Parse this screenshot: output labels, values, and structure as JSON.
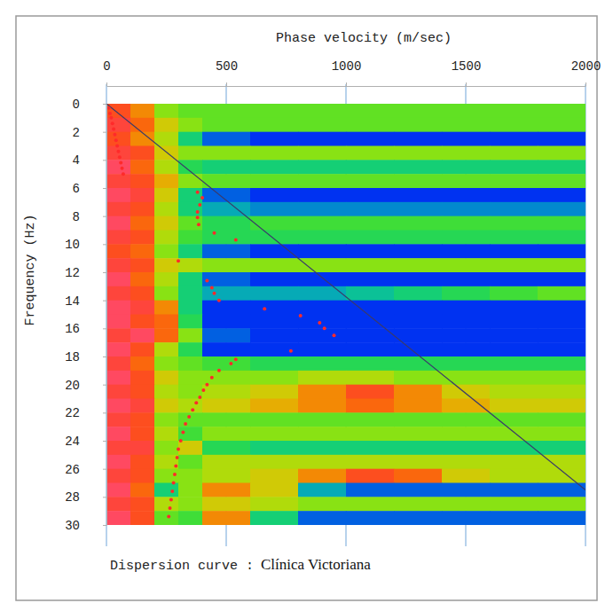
{
  "chart_data": {
    "type": "heatmap",
    "title": "Dispersion curve :",
    "subtitle": "Clínica Victoriana",
    "x_label": "Phase velocity (m/sec)",
    "y_label": "Frequency (Hz)",
    "xlim": [
      0,
      2000
    ],
    "ylim": [
      0,
      30
    ],
    "xticks": [
      0,
      500,
      1000,
      1500,
      2000
    ],
    "yticks": [
      0,
      2,
      4,
      6,
      8,
      10,
      12,
      14,
      16,
      18,
      20,
      22,
      24,
      26,
      28,
      30
    ],
    "grid": true,
    "zlim": [
      0,
      1
    ],
    "x_edges": [
      0,
      100,
      200,
      300,
      400,
      600,
      800,
      1000,
      1200,
      1400,
      1600,
      1800,
      2000
    ],
    "y_edges": [
      0,
      1,
      2,
      3,
      4,
      5,
      6,
      7,
      8,
      9,
      10,
      11,
      12,
      13,
      14,
      15,
      16,
      17,
      18,
      19,
      20,
      21,
      22,
      23,
      24,
      25,
      26,
      27,
      28,
      29,
      30
    ],
    "cells": [
      [
        0.8,
        0.7,
        0.5,
        0.45,
        0.45,
        0.45,
        0.45,
        0.45,
        0.45,
        0.45,
        0.45,
        0.45
      ],
      [
        0.85,
        0.75,
        0.6,
        0.5,
        0.45,
        0.45,
        0.45,
        0.45,
        0.45,
        0.45,
        0.45,
        0.45
      ],
      [
        0.8,
        0.7,
        0.55,
        0.3,
        0.1,
        0.05,
        0.05,
        0.05,
        0.05,
        0.05,
        0.05,
        0.05
      ],
      [
        0.85,
        0.8,
        0.6,
        0.5,
        0.5,
        0.5,
        0.5,
        0.5,
        0.5,
        0.5,
        0.5,
        0.5
      ],
      [
        0.9,
        0.75,
        0.55,
        0.35,
        0.3,
        0.3,
        0.3,
        0.3,
        0.3,
        0.3,
        0.3,
        0.3
      ],
      [
        0.85,
        0.8,
        0.65,
        0.5,
        0.45,
        0.45,
        0.45,
        0.45,
        0.45,
        0.45,
        0.45,
        0.45
      ],
      [
        0.9,
        0.85,
        0.6,
        0.3,
        0.1,
        0.05,
        0.05,
        0.05,
        0.05,
        0.05,
        0.05,
        0.05
      ],
      [
        0.85,
        0.8,
        0.55,
        0.3,
        0.2,
        0.15,
        0.15,
        0.15,
        0.15,
        0.15,
        0.15,
        0.15
      ],
      [
        0.9,
        0.75,
        0.6,
        0.45,
        0.35,
        0.4,
        0.4,
        0.4,
        0.4,
        0.4,
        0.4,
        0.4
      ],
      [
        0.85,
        0.8,
        0.55,
        0.4,
        0.35,
        0.35,
        0.35,
        0.35,
        0.35,
        0.35,
        0.35,
        0.35
      ],
      [
        0.8,
        0.75,
        0.5,
        0.3,
        0.1,
        0.05,
        0.05,
        0.05,
        0.05,
        0.05,
        0.05,
        0.05
      ],
      [
        0.85,
        0.8,
        0.6,
        0.55,
        0.5,
        0.5,
        0.5,
        0.5,
        0.5,
        0.5,
        0.5,
        0.5
      ],
      [
        0.9,
        0.75,
        0.55,
        0.3,
        0.1,
        0.05,
        0.05,
        0.05,
        0.05,
        0.05,
        0.05,
        0.05
      ],
      [
        0.85,
        0.8,
        0.5,
        0.3,
        0.2,
        0.2,
        0.2,
        0.25,
        0.3,
        0.35,
        0.4,
        0.45
      ],
      [
        0.9,
        0.85,
        0.7,
        0.3,
        0.05,
        0.05,
        0.05,
        0.05,
        0.05,
        0.05,
        0.05,
        0.05
      ],
      [
        0.9,
        0.8,
        0.75,
        0.35,
        0.05,
        0.05,
        0.05,
        0.05,
        0.05,
        0.05,
        0.05,
        0.05
      ],
      [
        0.85,
        0.9,
        0.75,
        0.5,
        0.1,
        0.05,
        0.05,
        0.05,
        0.05,
        0.05,
        0.05,
        0.05
      ],
      [
        0.9,
        0.8,
        0.55,
        0.35,
        0.05,
        0.05,
        0.05,
        0.05,
        0.05,
        0.05,
        0.05,
        0.05
      ],
      [
        0.85,
        0.75,
        0.5,
        0.45,
        0.4,
        0.35,
        0.35,
        0.35,
        0.35,
        0.35,
        0.35,
        0.35
      ],
      [
        0.9,
        0.8,
        0.6,
        0.5,
        0.5,
        0.5,
        0.55,
        0.55,
        0.5,
        0.5,
        0.5,
        0.5
      ],
      [
        0.85,
        0.8,
        0.55,
        0.5,
        0.55,
        0.6,
        0.7,
        0.8,
        0.7,
        0.6,
        0.55,
        0.55
      ],
      [
        0.9,
        0.85,
        0.6,
        0.55,
        0.6,
        0.65,
        0.7,
        0.75,
        0.7,
        0.65,
        0.6,
        0.6
      ],
      [
        0.85,
        0.8,
        0.5,
        0.45,
        0.45,
        0.45,
        0.45,
        0.45,
        0.45,
        0.45,
        0.45,
        0.45
      ],
      [
        0.9,
        0.8,
        0.55,
        0.4,
        0.5,
        0.5,
        0.5,
        0.5,
        0.5,
        0.5,
        0.5,
        0.5
      ],
      [
        0.85,
        0.85,
        0.5,
        0.6,
        0.35,
        0.3,
        0.3,
        0.3,
        0.3,
        0.3,
        0.3,
        0.3
      ],
      [
        0.9,
        0.8,
        0.55,
        0.45,
        0.55,
        0.55,
        0.55,
        0.55,
        0.55,
        0.55,
        0.55,
        0.55
      ],
      [
        0.85,
        0.8,
        0.5,
        0.5,
        0.55,
        0.6,
        0.7,
        0.8,
        0.75,
        0.6,
        0.55,
        0.55
      ],
      [
        0.9,
        0.75,
        0.3,
        0.5,
        0.7,
        0.6,
        0.2,
        0.1,
        0.1,
        0.1,
        0.1,
        0.1
      ],
      [
        0.85,
        0.8,
        0.55,
        0.5,
        0.6,
        0.55,
        0.5,
        0.5,
        0.5,
        0.5,
        0.5,
        0.5
      ],
      [
        0.9,
        0.8,
        0.45,
        0.4,
        0.7,
        0.3,
        0.1,
        0.1,
        0.1,
        0.1,
        0.1,
        0.1
      ]
    ],
    "picks": {
      "color": "#ff2a2a",
      "marker": "circle",
      "x": [
        10,
        15,
        20,
        25,
        30,
        35,
        40,
        45,
        50,
        55,
        60,
        65,
        70,
        380,
        400,
        390,
        380,
        380,
        385,
        450,
        540,
        300,
        420,
        440,
        450,
        470,
        660,
        810,
        890,
        910,
        950,
        770,
        540,
        520,
        470,
        440,
        420,
        405,
        390,
        375,
        360,
        345,
        330,
        320,
        310,
        300,
        295,
        290,
        285,
        280,
        275,
        270,
        265,
        260
      ],
      "y": [
        0.3,
        0.7,
        1,
        1.4,
        1.8,
        2.2,
        2.6,
        3,
        3.4,
        3.8,
        4.2,
        4.6,
        5,
        6.3,
        6.7,
        7.2,
        7.7,
        8.1,
        8.6,
        9.2,
        9.7,
        11.2,
        12.6,
        13.1,
        13.5,
        14,
        14.6,
        15.1,
        15.6,
        16,
        16.5,
        17.6,
        18.2,
        18.5,
        19,
        19.5,
        20,
        20.4,
        20.9,
        21.3,
        21.8,
        22.3,
        22.8,
        23.4,
        24,
        24.6,
        25.2,
        25.8,
        26.4,
        27,
        27.6,
        28.2,
        28.8,
        29.4
      ]
    },
    "reference_line": {
      "color": "#3a3a6a",
      "line_style": "solid",
      "x": [
        0,
        2000
      ],
      "y": [
        0,
        27.5
      ]
    }
  }
}
